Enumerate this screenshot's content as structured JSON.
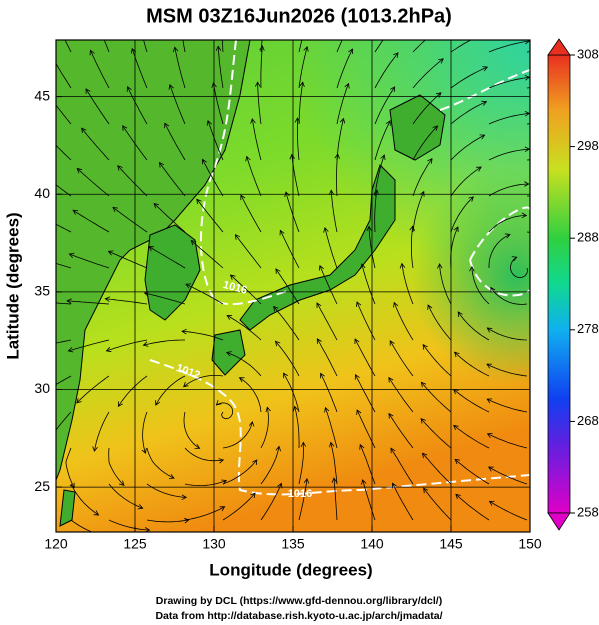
{
  "title": "MSM 03Z16Jun2026 (1013.2hPa)",
  "map": {
    "x_label": "Longitude (degrees)",
    "y_label": "Latitude  (degrees)",
    "lon_range": [
      120,
      150
    ],
    "lat_range": [
      22.7,
      47.9
    ],
    "lon_ticks": [
      120,
      125,
      130,
      135,
      140,
      145,
      150
    ],
    "lat_ticks": [
      25,
      30,
      35,
      40,
      45
    ],
    "contour_labels": [
      "1016",
      "1012",
      "1016"
    ]
  },
  "colorbar": {
    "range": [
      258,
      308
    ],
    "ticks": [
      258,
      268,
      278,
      288,
      298,
      308
    ]
  },
  "credits": [
    "Drawing by DCL (https://www.gfd-dennou.org/library/dcl/)",
    "Data from http://database.rish.kyoto-u.ac.jp/arch/jmadata/"
  ]
}
